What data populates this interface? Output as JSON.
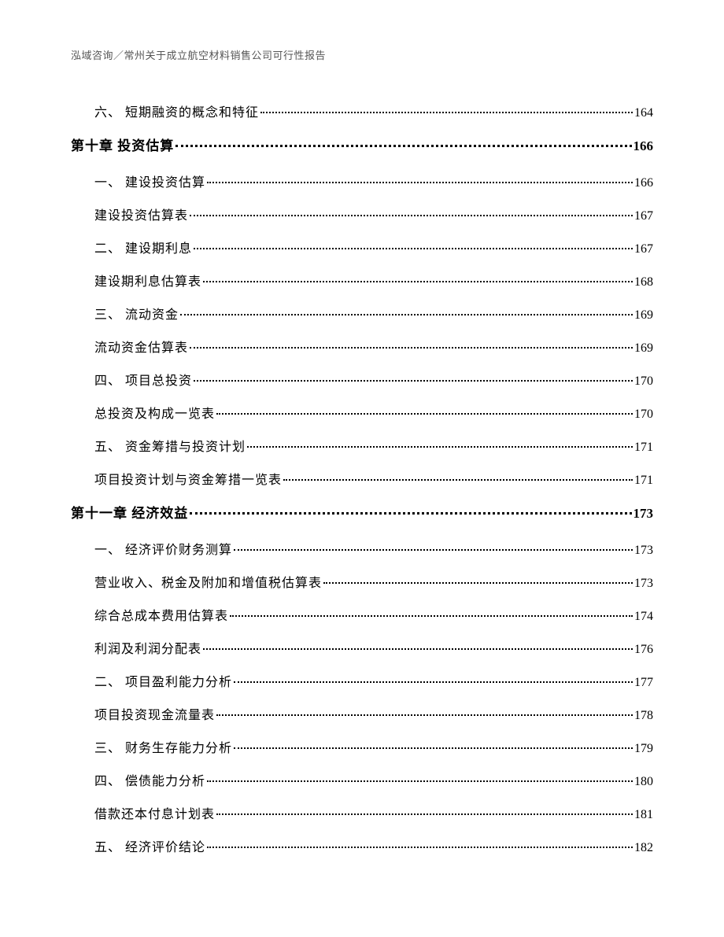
{
  "header": "泓域咨询／常州关于成立航空材料销售公司可行性报告",
  "toc": [
    {
      "level": 2,
      "label": "六、 短期融资的概念和特征",
      "page": "164"
    },
    {
      "level": 1,
      "label": "第十章 投资估算 ",
      "page": "166"
    },
    {
      "level": 2,
      "label": "一、 建设投资估算",
      "page": "166"
    },
    {
      "level": 2,
      "label": "建设投资估算表",
      "page": "167"
    },
    {
      "level": 2,
      "label": "二、 建设期利息",
      "page": "167"
    },
    {
      "level": 2,
      "label": "建设期利息估算表",
      "page": "168"
    },
    {
      "level": 2,
      "label": "三、 流动资金",
      "page": "169"
    },
    {
      "level": 2,
      "label": "流动资金估算表",
      "page": "169"
    },
    {
      "level": 2,
      "label": "四、 项目总投资",
      "page": "170"
    },
    {
      "level": 2,
      "label": "总投资及构成一览表",
      "page": "170"
    },
    {
      "level": 2,
      "label": "五、 资金筹措与投资计划",
      "page": "171"
    },
    {
      "level": 2,
      "label": "项目投资计划与资金筹措一览表",
      "page": "171"
    },
    {
      "level": 1,
      "label": "第十一章 经济效益",
      "page": "173"
    },
    {
      "level": 2,
      "label": "一、 经济评价财务测算",
      "page": "173"
    },
    {
      "level": 2,
      "label": "营业收入、税金及附加和增值税估算表",
      "page": "173"
    },
    {
      "level": 2,
      "label": "综合总成本费用估算表",
      "page": "174"
    },
    {
      "level": 2,
      "label": "利润及利润分配表",
      "page": "176"
    },
    {
      "level": 2,
      "label": "二、 项目盈利能力分析",
      "page": "177"
    },
    {
      "level": 2,
      "label": "项目投资现金流量表",
      "page": "178"
    },
    {
      "level": 2,
      "label": "三、 财务生存能力分析",
      "page": "179"
    },
    {
      "level": 2,
      "label": "四、 偿债能力分析",
      "page": "180"
    },
    {
      "level": 2,
      "label": "借款还本付息计划表",
      "page": "181"
    },
    {
      "level": 2,
      "label": "五、 经济评价结论",
      "page": "182"
    }
  ]
}
